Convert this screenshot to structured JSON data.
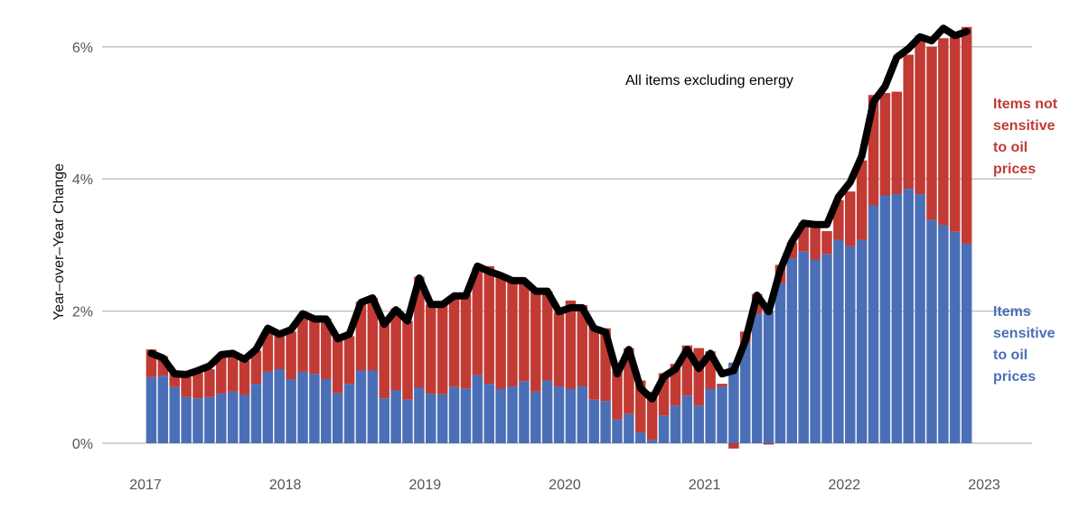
{
  "chart_data": {
    "type": "bar",
    "stacked": true,
    "ylabel": "Year–over–Year Change",
    "y_ticks": [
      "0%",
      "2%",
      "4%",
      "6%"
    ],
    "y_tick_values": [
      0,
      2,
      4,
      6
    ],
    "ylim": [
      0,
      6.3
    ],
    "x_ticks": [
      "2017",
      "2018",
      "2019",
      "2020",
      "2021",
      "2022",
      "2023"
    ],
    "x_start": "2017-01",
    "grid": true,
    "annotation": "All items excluding energy",
    "colors": {
      "sensitive": "#4a6fb7",
      "not_sensitive": "#c23a34",
      "line": "#000000",
      "grid": "#bbbbbb"
    },
    "legend": {
      "not_sensitive": [
        "Items not",
        "sensitive",
        "to oil",
        "prices"
      ],
      "sensitive": [
        "Items",
        "sensitive",
        "to oil",
        "prices"
      ]
    },
    "series": [
      {
        "name": "Items sensitive to oil prices",
        "values": [
          1.0,
          1.02,
          0.85,
          0.7,
          0.68,
          0.7,
          0.75,
          0.78,
          0.73,
          0.9,
          1.08,
          1.12,
          0.97,
          1.08,
          1.05,
          0.97,
          0.76,
          0.9,
          1.1,
          1.1,
          0.68,
          0.8,
          0.66,
          0.84,
          0.75,
          0.74,
          0.85,
          0.83,
          1.03,
          0.9,
          0.82,
          0.86,
          0.94,
          0.78,
          0.95,
          0.86,
          0.82,
          0.86,
          0.66,
          0.64,
          0.36,
          0.44,
          0.17,
          0.05,
          0.42,
          0.57,
          0.72,
          0.57,
          0.82,
          0.86,
          1.22,
          1.52,
          1.96,
          2.0,
          2.42,
          2.8,
          2.9,
          2.78,
          2.86,
          3.08,
          2.98,
          3.08,
          3.6,
          3.75,
          3.77,
          3.85,
          3.77,
          3.38,
          3.3,
          3.2,
          3.02
        ]
      },
      {
        "name": "Items not sensitive to oil prices",
        "values": [
          0.42,
          0.3,
          0.2,
          0.3,
          0.38,
          0.42,
          0.58,
          0.58,
          0.52,
          0.5,
          0.64,
          0.53,
          0.72,
          0.84,
          0.8,
          0.92,
          0.83,
          0.72,
          1.04,
          1.1,
          1.18,
          1.24,
          1.19,
          1.68,
          1.35,
          1.37,
          1.37,
          1.42,
          1.63,
          1.78,
          1.72,
          1.62,
          1.52,
          1.52,
          1.35,
          1.12,
          1.34,
          1.23,
          1.1,
          1.1,
          0.74,
          1.0,
          0.78,
          0.73,
          0.64,
          0.63,
          0.76,
          0.87,
          0.57,
          0.04,
          -0.08,
          0.17,
          0.3,
          -0.02,
          0.28,
          0.24,
          0.44,
          0.5,
          0.35,
          0.6,
          0.83,
          1.2,
          1.67,
          1.55,
          1.55,
          2.03,
          2.4,
          2.62,
          2.83,
          2.98,
          3.28
        ]
      },
      {
        "name": "All items excluding energy",
        "type": "line",
        "values": [
          1.36,
          1.29,
          1.05,
          1.04,
          1.1,
          1.17,
          1.34,
          1.36,
          1.27,
          1.42,
          1.74,
          1.65,
          1.72,
          1.96,
          1.88,
          1.88,
          1.58,
          1.65,
          2.13,
          2.2,
          1.8,
          2.02,
          1.85,
          2.5,
          2.1,
          2.1,
          2.23,
          2.23,
          2.68,
          2.6,
          2.54,
          2.46,
          2.46,
          2.3,
          2.3,
          1.99,
          2.05,
          2.05,
          1.74,
          1.68,
          1.05,
          1.42,
          0.83,
          0.67,
          1.01,
          1.12,
          1.42,
          1.13,
          1.36,
          1.05,
          1.1,
          1.55,
          2.24,
          1.99,
          2.62,
          3.05,
          3.33,
          3.31,
          3.31,
          3.73,
          3.95,
          4.35,
          5.17,
          5.4,
          5.84,
          5.97,
          6.15,
          6.09,
          6.28,
          6.17,
          6.23
        ]
      }
    ]
  }
}
